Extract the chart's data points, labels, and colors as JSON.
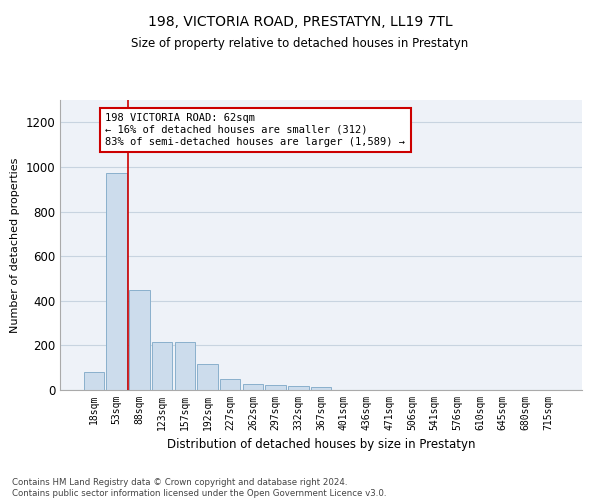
{
  "title": "198, VICTORIA ROAD, PRESTATYN, LL19 7TL",
  "subtitle": "Size of property relative to detached houses in Prestatyn",
  "xlabel": "Distribution of detached houses by size in Prestatyn",
  "ylabel": "Number of detached properties",
  "bar_labels": [
    "18sqm",
    "53sqm",
    "88sqm",
    "123sqm",
    "157sqm",
    "192sqm",
    "227sqm",
    "262sqm",
    "297sqm",
    "332sqm",
    "367sqm",
    "401sqm",
    "436sqm",
    "471sqm",
    "506sqm",
    "541sqm",
    "576sqm",
    "610sqm",
    "645sqm",
    "680sqm",
    "715sqm"
  ],
  "bar_values": [
    80,
    975,
    450,
    215,
    215,
    115,
    48,
    25,
    22,
    20,
    12,
    0,
    0,
    0,
    0,
    0,
    0,
    0,
    0,
    0,
    0
  ],
  "bar_color": "#ccdcec",
  "bar_edge_color": "#8ab0cc",
  "annotation_text_line1": "198 VICTORIA ROAD: 62sqm",
  "annotation_text_line2": "← 16% of detached houses are smaller (312)",
  "annotation_text_line3": "83% of semi-detached houses are larger (1,589) →",
  "annotation_box_facecolor": "#ffffff",
  "annotation_box_edgecolor": "#cc0000",
  "red_line_x": 1.5,
  "ylim": [
    0,
    1300
  ],
  "yticks": [
    0,
    200,
    400,
    600,
    800,
    1000,
    1200
  ],
  "grid_color": "#c8d4e0",
  "bg_color": "#eef2f8",
  "footer_text": "Contains HM Land Registry data © Crown copyright and database right 2024.\nContains public sector information licensed under the Open Government Licence v3.0."
}
